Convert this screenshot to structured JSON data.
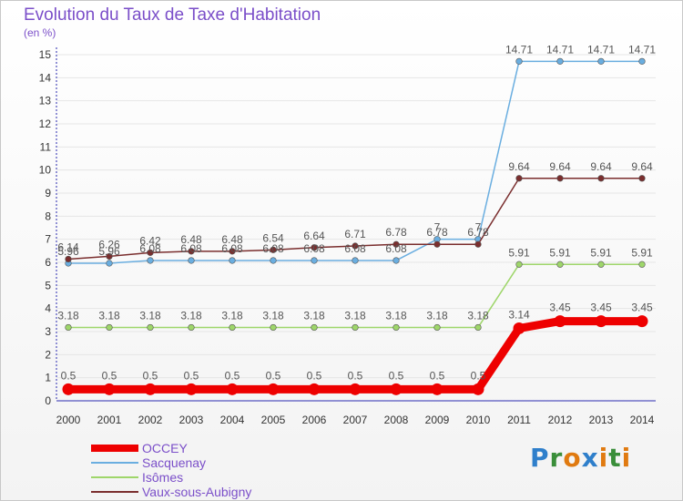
{
  "header": {
    "title": "Evolution du Taux de Taxe d'Habitation",
    "subtitle": "(en %)"
  },
  "logo": {
    "text": "Proxiti"
  },
  "colors": {
    "axis": "#6e6ec8",
    "grid": "#e6e6e6",
    "label_text": "#555555",
    "title_text": "#7b4fc9"
  },
  "chart_data": {
    "type": "line",
    "title": "Evolution du Taux de Taxe d'Habitation",
    "ylabel": "(en %)",
    "xlabel": "",
    "x": [
      "2000",
      "2001",
      "2002",
      "2003",
      "2004",
      "2005",
      "2006",
      "2007",
      "2008",
      "2009",
      "2010",
      "2011",
      "2012",
      "2013",
      "2014"
    ],
    "ylim": [
      0,
      15
    ],
    "yticks": [
      "0",
      "1",
      "2",
      "3",
      "4",
      "5",
      "6",
      "7",
      "8",
      "9",
      "10",
      "11",
      "12",
      "13",
      "14",
      "15"
    ],
    "grid": true,
    "legend_position": "bottom-left",
    "series": [
      {
        "name": "OCCEY",
        "color": "#ee0000",
        "values": [
          0.5,
          0.5,
          0.5,
          0.5,
          0.5,
          0.5,
          0.5,
          0.5,
          0.5,
          0.5,
          0.5,
          3.14,
          3.45,
          3.45,
          3.45
        ],
        "labels": [
          "0.5",
          "0.5",
          "0.5",
          "0.5",
          "0.5",
          "0.5",
          "0.5",
          "0.5",
          "0.5",
          "0.5",
          "0.5",
          "3.14",
          "3.45",
          "3.45",
          "3.45"
        ]
      },
      {
        "name": "Sacquenay",
        "color": "#6aaee0",
        "values": [
          5.96,
          5.96,
          6.08,
          6.08,
          6.08,
          6.08,
          6.08,
          6.08,
          6.08,
          7,
          7,
          14.71,
          14.71,
          14.71,
          14.71
        ],
        "labels": [
          "5.96",
          "5.96",
          "6.08",
          "6.08",
          "6.08",
          "6.08",
          "6.08",
          "6.08",
          "6.08",
          "7",
          "7",
          "14.71",
          "14.71",
          "14.71",
          "14.71"
        ]
      },
      {
        "name": "Isômes",
        "color": "#9ed66a",
        "values": [
          3.18,
          3.18,
          3.18,
          3.18,
          3.18,
          3.18,
          3.18,
          3.18,
          3.18,
          3.18,
          3.18,
          5.91,
          5.91,
          5.91,
          5.91
        ],
        "labels": [
          "3.18",
          "3.18",
          "3.18",
          "3.18",
          "3.18",
          "3.18",
          "3.18",
          "3.18",
          "3.18",
          "3.18",
          "3.18",
          "5.91",
          "5.91",
          "5.91",
          "5.91"
        ]
      },
      {
        "name": "Vaux-sous-Aubigny",
        "color": "#7a2e2e",
        "values": [
          6.14,
          6.26,
          6.42,
          6.48,
          6.48,
          6.54,
          6.64,
          6.71,
          6.78,
          6.78,
          6.78,
          9.64,
          9.64,
          9.64,
          9.64
        ],
        "labels": [
          "6.14",
          "6.26",
          "6.42",
          "6.48",
          "6.48",
          "6.54",
          "6.64",
          "6.71",
          "6.78",
          "6.78",
          "6.78",
          "9.64",
          "9.64",
          "9.64",
          "9.64"
        ]
      }
    ]
  }
}
